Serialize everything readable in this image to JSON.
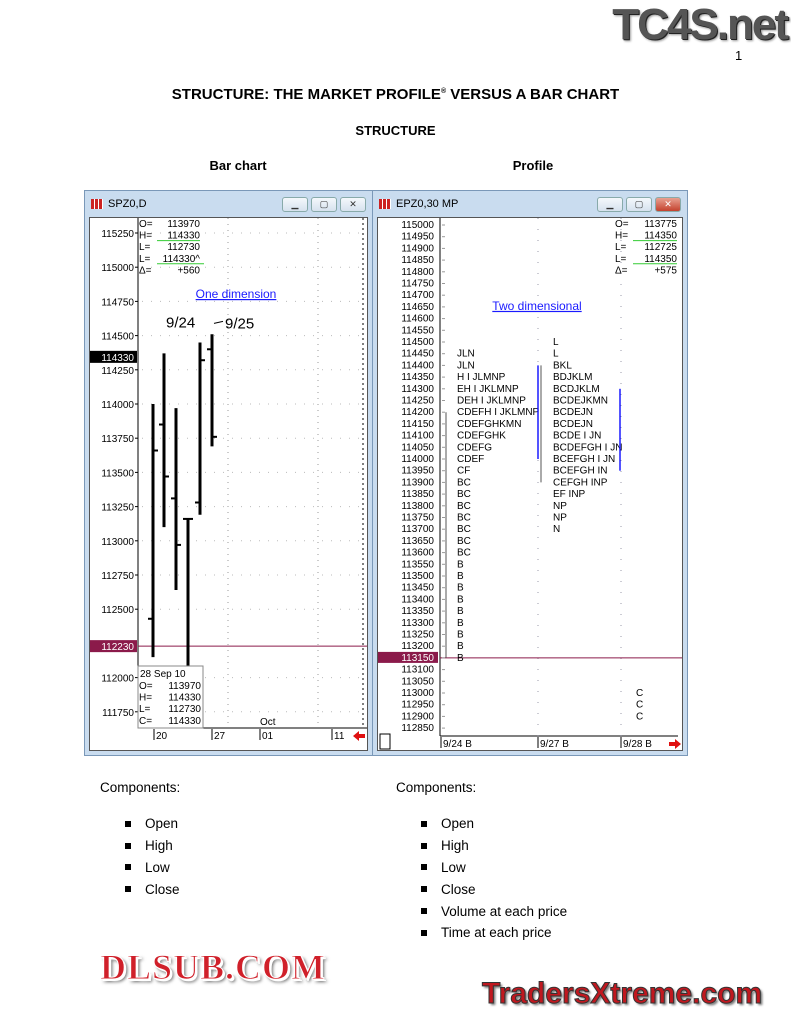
{
  "header": {
    "logo": "TC4S.net",
    "page_number": "1",
    "title": "STRUCTURE: THE MARKET PROFILE",
    "title_mark": "®",
    "title_rest": " VERSUS A BAR CHART",
    "section": "STRUCTURE",
    "left_caption": "Bar chart",
    "right_caption": "Profile"
  },
  "bar_window": {
    "title": "SPZ0,D",
    "ohlc": [
      {
        "k": "O=",
        "v": "113970"
      },
      {
        "k": "H=",
        "v": "114330"
      },
      {
        "k": "L=",
        "v": "112730"
      },
      {
        "k": "L=",
        "v": "114330^"
      },
      {
        "k": "Δ=",
        "v": "+560"
      }
    ],
    "annotation": "One dimension",
    "label_a": "9/24",
    "label_b": "9/25",
    "last_price": "114330",
    "line_price": "112230",
    "info_box": {
      "date": "28  Sep  10",
      "rows": [
        {
          "k": "O=",
          "v": "113970"
        },
        {
          "k": "H=",
          "v": "114330"
        },
        {
          "k": "L=",
          "v": "112730"
        },
        {
          "k": "C=",
          "v": "114330"
        }
      ]
    },
    "x_labels": [
      "20",
      "27",
      "01",
      "11"
    ],
    "month_label": "Oct"
  },
  "chart_data": {
    "type": "ohlc-bar",
    "ylim": [
      111650,
      115350
    ],
    "yticks": [
      115250,
      115000,
      114750,
      114500,
      114250,
      114000,
      113750,
      113500,
      113250,
      113000,
      112750,
      112500,
      112000,
      111750
    ],
    "bars": [
      {
        "o": 112430,
        "h": 114000,
        "l": 112150,
        "c": 113660
      },
      {
        "o": 113850,
        "h": 114370,
        "l": 113100,
        "c": 113470
      },
      {
        "o": 113310,
        "h": 113970,
        "l": 112640,
        "c": 112970
      },
      {
        "o": 113160,
        "h": 113160,
        "l": 111950,
        "c": 113160
      },
      {
        "o": 113280,
        "h": 114450,
        "l": 113190,
        "c": 114320
      },
      {
        "o": 114400,
        "h": 114510,
        "l": 113690,
        "c": 113760
      }
    ]
  },
  "profile_window": {
    "title": "EPZ0,30  MP",
    "ohlc": [
      {
        "k": "O=",
        "v": "113775"
      },
      {
        "k": "H=",
        "v": "114350"
      },
      {
        "k": "L=",
        "v": "112725"
      },
      {
        "k": "L=",
        "v": "114350"
      },
      {
        "k": "Δ=",
        "v": "+575"
      }
    ],
    "annotation": "Two dimensional",
    "line_price": "113150",
    "x_labels": [
      "9/24  B",
      "9/27  B",
      "9/28  B"
    ],
    "rows": [
      {
        "p": "115000",
        "a": "",
        "b": "",
        "c": ""
      },
      {
        "p": "114950",
        "a": "",
        "b": "",
        "c": ""
      },
      {
        "p": "114900",
        "a": "",
        "b": "",
        "c": ""
      },
      {
        "p": "114850",
        "a": "",
        "b": "",
        "c": ""
      },
      {
        "p": "114800",
        "a": "",
        "b": "",
        "c": ""
      },
      {
        "p": "114750",
        "a": "",
        "b": "",
        "c": ""
      },
      {
        "p": "114700",
        "a": "",
        "b": "",
        "c": ""
      },
      {
        "p": "114650",
        "a": "",
        "b": "",
        "c": ""
      },
      {
        "p": "114600",
        "a": "",
        "b": "",
        "c": ""
      },
      {
        "p": "114550",
        "a": "",
        "b": "",
        "c": ""
      },
      {
        "p": "114500",
        "a": "",
        "b": "L",
        "c": ""
      },
      {
        "p": "114450",
        "a": "JLN",
        "b": "L",
        "c": ""
      },
      {
        "p": "114400",
        "a": "JLN",
        "b": "BKL",
        "c": ""
      },
      {
        "p": "114350",
        "a": "H I JLMNP",
        "b": "BDJKLM",
        "c": ""
      },
      {
        "p": "114300",
        "a": "EH I JKLMNP",
        "b": "BCDJKLM",
        "c": ""
      },
      {
        "p": "114250",
        "a": "DEH I JKLMNP",
        "b": "BCDEJKMN",
        "c": ""
      },
      {
        "p": "114200",
        "a": "CDEFH I JKLMNP",
        "b": "BCDEJN",
        "c": ""
      },
      {
        "p": "114150",
        "a": "CDEFGHKMN",
        "b": "BCDEJN",
        "c": ""
      },
      {
        "p": "114100",
        "a": "CDEFGHK",
        "b": "BCDE I JN",
        "c": ""
      },
      {
        "p": "114050",
        "a": "CDEFG",
        "b": "BCDEFGH I JN",
        "c": ""
      },
      {
        "p": "114000",
        "a": "CDEF",
        "b": "BCEFGH I JN",
        "c": ""
      },
      {
        "p": "113950",
        "a": "CF",
        "b": "BCEFGH IN",
        "c": ""
      },
      {
        "p": "113900",
        "a": "BC",
        "b": "CEFGH INP",
        "c": ""
      },
      {
        "p": "113850",
        "a": "BC",
        "b": "EF INP",
        "c": ""
      },
      {
        "p": "113800",
        "a": "BC",
        "b": "NP",
        "c": ""
      },
      {
        "p": "113750",
        "a": "BC",
        "b": "NP",
        "c": ""
      },
      {
        "p": "113700",
        "a": "BC",
        "b": "N",
        "c": ""
      },
      {
        "p": "113650",
        "a": "BC",
        "b": "",
        "c": ""
      },
      {
        "p": "113600",
        "a": "BC",
        "b": "",
        "c": ""
      },
      {
        "p": "113550",
        "a": "B",
        "b": "",
        "c": ""
      },
      {
        "p": "113500",
        "a": "B",
        "b": "",
        "c": ""
      },
      {
        "p": "113450",
        "a": "B",
        "b": "",
        "c": ""
      },
      {
        "p": "113400",
        "a": "B",
        "b": "",
        "c": ""
      },
      {
        "p": "113350",
        "a": "B",
        "b": "",
        "c": ""
      },
      {
        "p": "113300",
        "a": "B",
        "b": "",
        "c": ""
      },
      {
        "p": "113250",
        "a": "B",
        "b": "",
        "c": ""
      },
      {
        "p": "113200",
        "a": "B",
        "b": "",
        "c": ""
      },
      {
        "p": "113150",
        "a": "B",
        "b": "",
        "c": ""
      },
      {
        "p": "113100",
        "a": "",
        "b": "",
        "c": ""
      },
      {
        "p": "113050",
        "a": "",
        "b": "",
        "c": ""
      },
      {
        "p": "113000",
        "a": "",
        "b": "",
        "c": "C"
      },
      {
        "p": "112950",
        "a": "",
        "b": "",
        "c": "C"
      },
      {
        "p": "112900",
        "a": "",
        "b": "",
        "c": "C"
      },
      {
        "p": "112850",
        "a": "",
        "b": "",
        "c": ""
      }
    ]
  },
  "components": {
    "left_heading": "Components:",
    "left_items": [
      "Open",
      "High",
      "Low",
      "Close"
    ],
    "right_heading": "Components:",
    "right_items": [
      "Open",
      "High",
      "Low",
      "Close",
      "Volume at each price",
      "Time at each price"
    ]
  },
  "watermarks": {
    "center": "DLSUB.COM",
    "footer": "TradersXtreme.com"
  },
  "colors": {
    "link": "#1a1aff",
    "last_price_bg": "#000000",
    "line": "#8b1a4a",
    "arrow": "#e01010",
    "profile_marker": "#1a1aff"
  }
}
